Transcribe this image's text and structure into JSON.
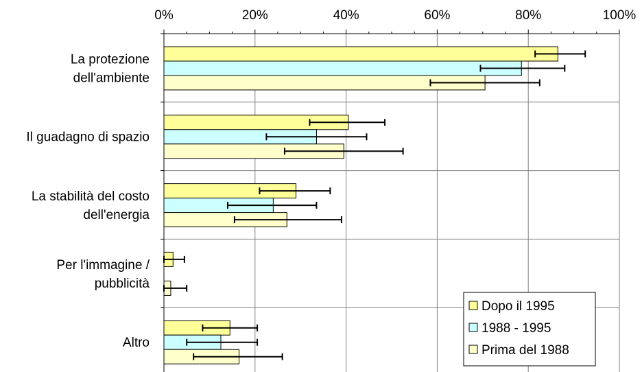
{
  "chart_data": {
    "type": "bar",
    "orientation": "horizontal",
    "categories": [
      [
        "La protezione",
        "dell'ambiente"
      ],
      [
        "Il guadagno di spazio"
      ],
      [
        "La stabilità del costo",
        "dell'energia"
      ],
      [
        "Per l'immagine /",
        "pubblicità"
      ],
      [
        "Altro"
      ]
    ],
    "xlim": [
      0,
      100
    ],
    "x_ticks": [
      "0%",
      "20%",
      "40%",
      "60%",
      "80%",
      "100%"
    ],
    "grid": true,
    "legend_position": "bottom-right",
    "error_bars": true,
    "series": [
      {
        "name": "Dopo il 1995",
        "color": "#ffff99",
        "values": [
          86.5,
          40.5,
          29,
          2,
          14.5
        ],
        "err_low": [
          81.5,
          32,
          21,
          0,
          8.5
        ],
        "err_high": [
          92.5,
          48.5,
          36.5,
          4.5,
          20.5
        ]
      },
      {
        "name": "1988 - 1995",
        "color": "#ccffff",
        "values": [
          78.5,
          33.5,
          24,
          0,
          12.5
        ],
        "err_low": [
          69.5,
          22.5,
          14,
          0,
          5
        ],
        "err_high": [
          88,
          44.5,
          33.5,
          0,
          20.5
        ]
      },
      {
        "name": "Prima del 1988",
        "color": "#ffffcc",
        "values": [
          70.5,
          39.5,
          27,
          1.5,
          16.5
        ],
        "err_low": [
          58.5,
          26.5,
          15.5,
          0,
          6.5
        ],
        "err_high": [
          82.5,
          52.5,
          39,
          5,
          26
        ]
      }
    ]
  }
}
